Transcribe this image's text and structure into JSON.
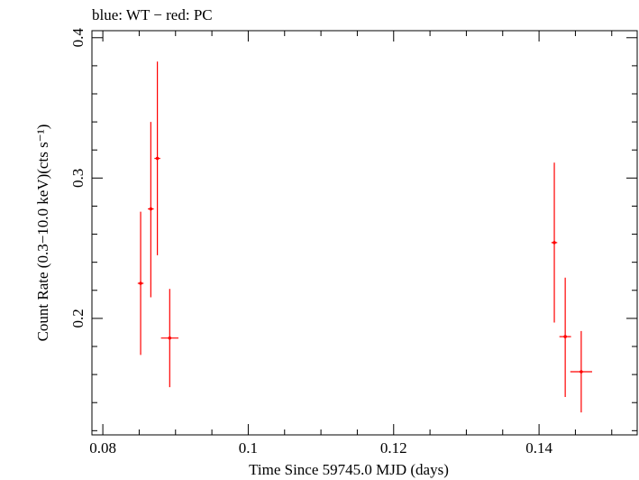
{
  "chart_data": {
    "type": "scatter",
    "title": "blue: WT − red: PC",
    "xlabel": "Time Since 59745.0 MJD (days)",
    "ylabel": "Count Rate (0.3−10.0 keV)(cts s⁻¹)",
    "xlim": [
      0.0785,
      0.1535
    ],
    "ylim": [
      0.117,
      0.405
    ],
    "x_major_ticks": [
      0.08,
      0.1,
      0.12,
      0.14
    ],
    "x_tick_labels": [
      "0.08",
      "0.1",
      "0.12",
      "0.14"
    ],
    "y_major_ticks": [
      0.2,
      0.3,
      0.4
    ],
    "y_tick_labels": [
      "0.2",
      "0.3",
      "0.4"
    ],
    "grid": false,
    "series": [
      {
        "name": "PC",
        "color": "#ff0000",
        "points": [
          {
            "x": 0.0852,
            "xerr": 0.0004,
            "y": 0.225,
            "ylo": 0.174,
            "yhi": 0.276
          },
          {
            "x": 0.0866,
            "xerr": 0.0004,
            "y": 0.278,
            "ylo": 0.215,
            "yhi": 0.34
          },
          {
            "x": 0.0875,
            "xerr": 0.0004,
            "y": 0.314,
            "ylo": 0.245,
            "yhi": 0.383
          },
          {
            "x": 0.0892,
            "xerr": 0.0012,
            "y": 0.186,
            "ylo": 0.151,
            "yhi": 0.221
          },
          {
            "x": 0.1421,
            "xerr": 0.0004,
            "y": 0.254,
            "ylo": 0.197,
            "yhi": 0.311
          },
          {
            "x": 0.1436,
            "xerr": 0.0008,
            "y": 0.187,
            "ylo": 0.144,
            "yhi": 0.229
          },
          {
            "x": 0.1458,
            "xerr": 0.0015,
            "y": 0.162,
            "ylo": 0.133,
            "yhi": 0.191
          }
        ]
      }
    ]
  }
}
